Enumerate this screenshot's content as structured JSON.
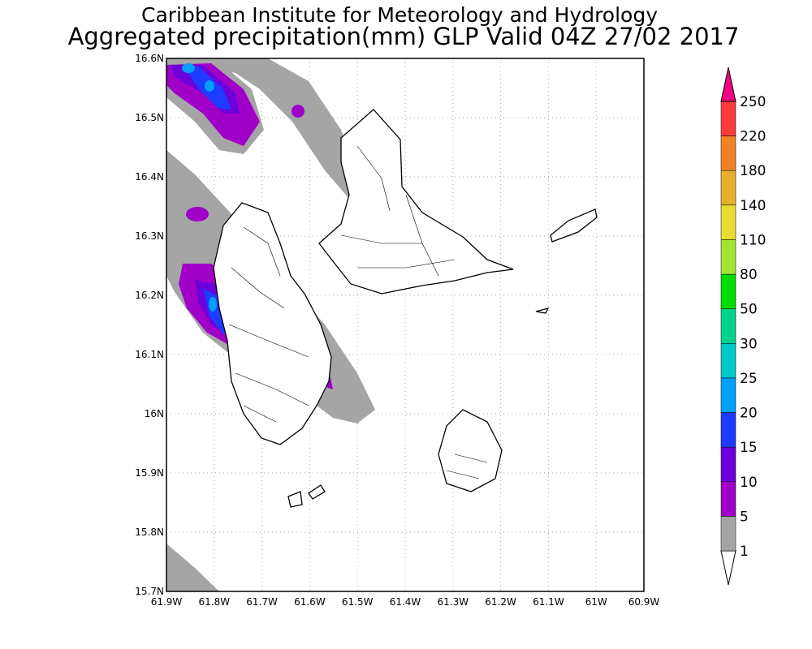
{
  "title": "Caribbean Institute for Meteorology and Hydrology",
  "subtitle": "Aggregated precipitation(mm) GLP Valid 04Z 27/02 2017",
  "map": {
    "lonlim": [
      -61.9,
      -60.9
    ],
    "latlim": [
      15.7,
      16.6
    ],
    "lon_ticks": [
      {
        "value": -61.9,
        "label": "61.9W"
      },
      {
        "value": -61.8,
        "label": "61.8W"
      },
      {
        "value": -61.7,
        "label": "61.7W"
      },
      {
        "value": -61.6,
        "label": "61.6W"
      },
      {
        "value": -61.5,
        "label": "61.5W"
      },
      {
        "value": -61.4,
        "label": "61.4W"
      },
      {
        "value": -61.3,
        "label": "61.3W"
      },
      {
        "value": -61.2,
        "label": "61.2W"
      },
      {
        "value": -61.1,
        "label": "61.1W"
      },
      {
        "value": -61,
        "label": "61W"
      },
      {
        "value": -60.9,
        "label": "60.9W"
      }
    ],
    "lat_ticks": [
      {
        "value": 15.7,
        "label": "15.7N"
      },
      {
        "value": 15.8,
        "label": "15.8N"
      },
      {
        "value": 15.9,
        "label": "15.9N"
      },
      {
        "value": 16,
        "label": "16N"
      },
      {
        "value": 16.1,
        "label": "16.1N"
      },
      {
        "value": 16.2,
        "label": "16.2N"
      },
      {
        "value": 16.3,
        "label": "16.3N"
      },
      {
        "value": 16.4,
        "label": "16.4N"
      },
      {
        "value": 16.5,
        "label": "16.5N"
      },
      {
        "value": 16.6,
        "label": "16.6N"
      }
    ]
  },
  "legend": {
    "levels": [
      "1",
      "5",
      "10",
      "15",
      "20",
      "25",
      "30",
      "50",
      "80",
      "110",
      "140",
      "180",
      "220",
      "250"
    ],
    "colors": [
      "#ffffff",
      "#a5a5a5",
      "#a000c8",
      "#6e00dc",
      "#1e3cff",
      "#00a0ff",
      "#00c8c8",
      "#00d28c",
      "#00dc00",
      "#a0e632",
      "#e6dc32",
      "#e6af2d",
      "#f08228",
      "#fa3c3c",
      "#f00082"
    ]
  }
}
